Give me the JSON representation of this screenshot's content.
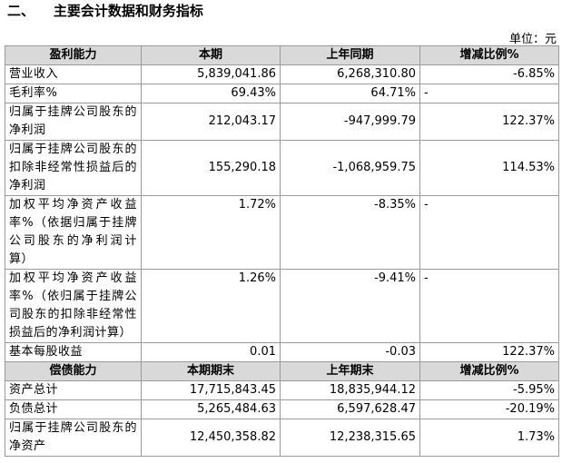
{
  "header": {
    "title": "二、    主要会计数据和财务指标",
    "unit": "单位：元"
  },
  "sections": [
    {
      "header": [
        "盈利能力",
        "本期",
        "上年同期",
        "增减比例%"
      ],
      "rows": [
        [
          "营业收入",
          "5,839,041.86",
          "6,268,310.80",
          "-6.85%"
        ],
        [
          "毛利率%",
          "69.43%",
          "64.71%",
          "-"
        ],
        [
          "归属于挂牌公司股东的净利润",
          "212,043.17",
          "-947,999.79",
          "122.37%"
        ],
        [
          "归属于挂牌公司股东的扣除非经常性损益后的净利润",
          "155,290.18",
          "-1,068,959.75",
          "114.53%"
        ],
        [
          "加权平均净资产收益率%（依据归属于挂牌公司股东的净利润计算）",
          "1.72%",
          "-8.35%",
          "-"
        ],
        [
          "加权平均净资产收益率%（依归属于挂牌公司股东的扣除非经常性损益后的净利润计算）",
          "1.26%",
          "-9.41%",
          "-"
        ],
        [
          "基本每股收益",
          "0.01",
          "-0.03",
          "122.37%"
        ]
      ]
    },
    {
      "header": [
        "偿债能力",
        "本期期末",
        "上年期末",
        "增减比例%"
      ],
      "rows": [
        [
          "资产总计",
          "17,715,843.45",
          "18,835,944.12",
          "-5.95%"
        ],
        [
          "负债总计",
          "5,265,484.63",
          "6,597,628.47",
          "-20.19%"
        ],
        [
          "归属于挂牌公司股东的净资产",
          "12,450,358.82",
          "12,238,315.65",
          "1.73%"
        ]
      ]
    }
  ]
}
